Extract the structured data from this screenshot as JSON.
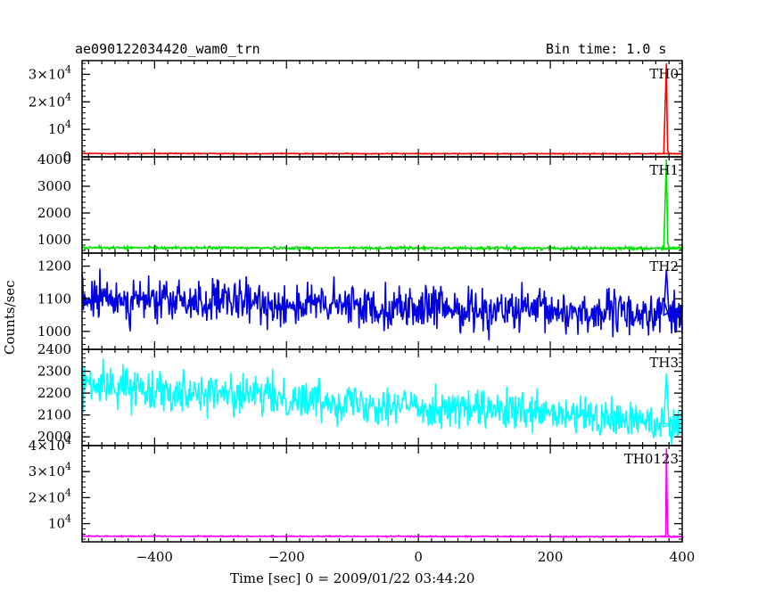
{
  "header": {
    "title": "ae090122034420_wam0_trn",
    "bin_time": "Bin time: 1.0 s"
  },
  "axes": {
    "xlabel": "Time [sec] 0 = 2009/01/22 03:44:20",
    "ylabel": "Counts/sec"
  },
  "chart_data": {
    "type": "line",
    "x_range": [
      -510,
      400
    ],
    "x_ticks": [
      -400,
      -200,
      0,
      200,
      400
    ],
    "grid": false,
    "panels": [
      {
        "name": "TH0",
        "color": "#ff0000",
        "ylim": [
          0,
          35000
        ],
        "ticks": [
          {
            "v": 0,
            "text": "0"
          },
          {
            "v": 10000,
            "base": "10",
            "exp": "4"
          },
          {
            "v": 20000,
            "base": "2×10",
            "exp": "4"
          },
          {
            "v": 30000,
            "base": "3×10",
            "exp": "4"
          }
        ],
        "baseline": 1200,
        "baseline_end": 1150,
        "noise": 80,
        "burst": [
          {
            "x": 376,
            "y": 34000
          },
          {
            "x": 377,
            "y": 15000
          },
          {
            "x": 378,
            "y": 2500
          }
        ]
      },
      {
        "name": "TH1",
        "color": "#00e000",
        "ylim": [
          500,
          4100
        ],
        "ticks": [
          {
            "v": 1000,
            "text": "1000"
          },
          {
            "v": 2000,
            "text": "2000"
          },
          {
            "v": 3000,
            "text": "3000"
          },
          {
            "v": 4000,
            "text": "4000"
          }
        ],
        "baseline": 700,
        "baseline_end": 680,
        "noise": 25,
        "burst": [
          {
            "x": 376,
            "y": 4000
          },
          {
            "x": 377,
            "y": 2500
          },
          {
            "x": 378,
            "y": 900
          }
        ]
      },
      {
        "name": "TH2",
        "color": "#0000e0",
        "ylim": [
          945,
          1240
        ],
        "ticks": [
          {
            "v": 1000,
            "text": "1000"
          },
          {
            "v": 1100,
            "text": "1100"
          },
          {
            "v": 1200,
            "text": "1200"
          }
        ],
        "baseline": 1100,
        "baseline_end": 1050,
        "noise": 33,
        "burst": [
          {
            "x": 376,
            "y": 1190
          }
        ]
      },
      {
        "name": "TH3",
        "color": "#00ffff",
        "ylim": [
          1960,
          2400
        ],
        "ticks": [
          {
            "v": 2000,
            "text": "2000"
          },
          {
            "v": 2100,
            "text": "2100"
          },
          {
            "v": 2200,
            "text": "2200"
          },
          {
            "v": 2300,
            "text": "2300"
          },
          {
            "v": 2400,
            "text": "2400"
          }
        ],
        "baseline": 2240,
        "baseline_end": 2060,
        "noise": 45,
        "burst": [
          {
            "x": 376,
            "y": 2290
          }
        ]
      },
      {
        "name": "TH0123",
        "color": "#ff00ff",
        "ylim": [
          3000,
          40000
        ],
        "ticks": [
          {
            "v": 10000,
            "base": "10",
            "exp": "4"
          },
          {
            "v": 20000,
            "base": "2×10",
            "exp": "4"
          },
          {
            "v": 30000,
            "base": "3×10",
            "exp": "4"
          },
          {
            "v": 40000,
            "base": "4×10",
            "exp": "4"
          }
        ],
        "baseline": 5200,
        "baseline_end": 5000,
        "noise": 120,
        "burst": [
          {
            "x": 375,
            "y": 5500
          },
          {
            "x": 376,
            "y": 39000
          },
          {
            "x": 377,
            "y": 20000
          },
          {
            "x": 378,
            "y": 6000
          }
        ]
      }
    ]
  }
}
